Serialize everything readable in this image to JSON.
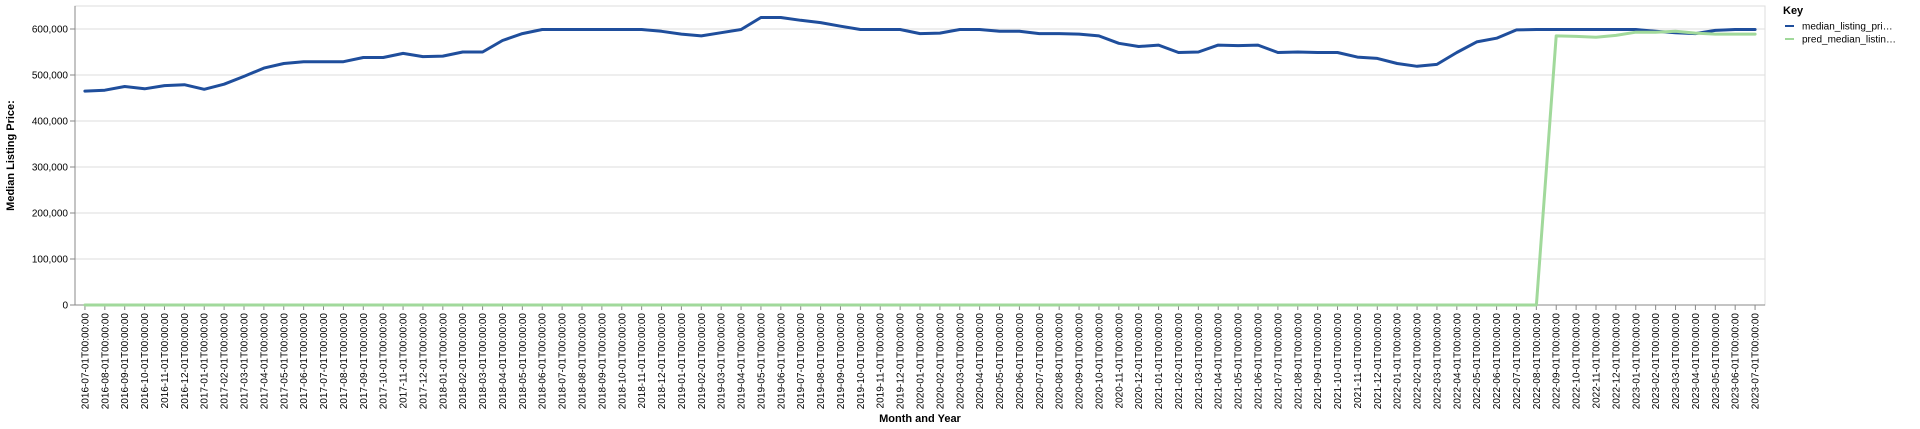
{
  "chart_data": {
    "type": "line",
    "xlabel": "Month and Year",
    "ylabel": "Median Listing Price:",
    "ylim": [
      0,
      650000
    ],
    "yticks": [
      0,
      100000,
      200000,
      300000,
      400000,
      500000,
      600000
    ],
    "ytick_labels": [
      "0",
      "100,000",
      "200,000",
      "300,000",
      "400,000",
      "500,000",
      "600,000"
    ],
    "grid": true,
    "legend": {
      "title": "Key",
      "placement": "top-right"
    },
    "x": [
      "2016-07-01T00:00:00",
      "2016-08-01T00:00:00",
      "2016-09-01T00:00:00",
      "2016-10-01T00:00:00",
      "2016-11-01T00:00:00",
      "2016-12-01T00:00:00",
      "2017-01-01T00:00:00",
      "2017-02-01T00:00:00",
      "2017-03-01T00:00:00",
      "2017-04-01T00:00:00",
      "2017-05-01T00:00:00",
      "2017-06-01T00:00:00",
      "2017-07-01T00:00:00",
      "2017-08-01T00:00:00",
      "2017-09-01T00:00:00",
      "2017-10-01T00:00:00",
      "2017-11-01T00:00:00",
      "2017-12-01T00:00:00",
      "2018-01-01T00:00:00",
      "2018-02-01T00:00:00",
      "2018-03-01T00:00:00",
      "2018-04-01T00:00:00",
      "2018-05-01T00:00:00",
      "2018-06-01T00:00:00",
      "2018-07-01T00:00:00",
      "2018-08-01T00:00:00",
      "2018-09-01T00:00:00",
      "2018-10-01T00:00:00",
      "2018-11-01T00:00:00",
      "2018-12-01T00:00:00",
      "2019-01-01T00:00:00",
      "2019-02-01T00:00:00",
      "2019-03-01T00:00:00",
      "2019-04-01T00:00:00",
      "2019-05-01T00:00:00",
      "2019-06-01T00:00:00",
      "2019-07-01T00:00:00",
      "2019-08-01T00:00:00",
      "2019-09-01T00:00:00",
      "2019-10-01T00:00:00",
      "2019-11-01T00:00:00",
      "2019-12-01T00:00:00",
      "2020-01-01T00:00:00",
      "2020-02-01T00:00:00",
      "2020-03-01T00:00:00",
      "2020-04-01T00:00:00",
      "2020-05-01T00:00:00",
      "2020-06-01T00:00:00",
      "2020-07-01T00:00:00",
      "2020-08-01T00:00:00",
      "2020-09-01T00:00:00",
      "2020-10-01T00:00:00",
      "2020-11-01T00:00:00",
      "2020-12-01T00:00:00",
      "2021-01-01T00:00:00",
      "2021-02-01T00:00:00",
      "2021-03-01T00:00:00",
      "2021-04-01T00:00:00",
      "2021-05-01T00:00:00",
      "2021-06-01T00:00:00",
      "2021-07-01T00:00:00",
      "2021-08-01T00:00:00",
      "2021-09-01T00:00:00",
      "2021-10-01T00:00:00",
      "2021-11-01T00:00:00",
      "2021-12-01T00:00:00",
      "2022-01-01T00:00:00",
      "2022-02-01T00:00:00",
      "2022-03-01T00:00:00",
      "2022-04-01T00:00:00",
      "2022-05-01T00:00:00",
      "2022-06-01T00:00:00",
      "2022-07-01T00:00:00",
      "2022-08-01T00:00:00",
      "2022-09-01T00:00:00",
      "2022-10-01T00:00:00",
      "2022-11-01T00:00:00",
      "2022-12-01T00:00:00",
      "2023-01-01T00:00:00",
      "2023-02-01T00:00:00",
      "2023-03-01T00:00:00",
      "2023-04-01T00:00:00",
      "2023-05-01T00:00:00",
      "2023-06-01T00:00:00",
      "2023-07-01T00:00:00"
    ],
    "series": [
      {
        "name": "median_listing_pri…",
        "color": "#1f4e9c",
        "values": [
          465000,
          467000,
          475000,
          470000,
          477000,
          479000,
          469000,
          480000,
          497000,
          515000,
          525000,
          529000,
          529000,
          529000,
          538000,
          538000,
          547000,
          540000,
          541000,
          550000,
          550000,
          575000,
          590000,
          599000,
          599000,
          599000,
          599000,
          599000,
          599000,
          595000,
          589000,
          585000,
          592000,
          599000,
          625000,
          625000,
          619000,
          614000,
          606000,
          599000,
          599000,
          599000,
          590000,
          591000,
          599000,
          599000,
          595000,
          595000,
          590000,
          590000,
          589000,
          585000,
          569000,
          562000,
          565000,
          549000,
          550000,
          565000,
          564000,
          565000,
          549000,
          550000,
          549000,
          549000,
          539000,
          536000,
          525000,
          519000,
          523000,
          549000,
          572000,
          580000,
          598000,
          599000,
          599000,
          599000,
          599000,
          599000,
          599000,
          595000,
          592000,
          590000,
          597000,
          599000,
          599000
        ]
      },
      {
        "name": "pred_median_listin…",
        "color": "#a1d99b",
        "values": [
          0,
          0,
          0,
          0,
          0,
          0,
          0,
          0,
          0,
          0,
          0,
          0,
          0,
          0,
          0,
          0,
          0,
          0,
          0,
          0,
          0,
          0,
          0,
          0,
          0,
          0,
          0,
          0,
          0,
          0,
          0,
          0,
          0,
          0,
          0,
          0,
          0,
          0,
          0,
          0,
          0,
          0,
          0,
          0,
          0,
          0,
          0,
          0,
          0,
          0,
          0,
          0,
          0,
          0,
          0,
          0,
          0,
          0,
          0,
          0,
          0,
          0,
          0,
          0,
          0,
          0,
          0,
          0,
          0,
          0,
          0,
          0,
          0,
          0,
          585000,
          584000,
          582000,
          586000,
          593000,
          593000,
          595000,
          591000,
          589000,
          589000,
          589000
        ]
      }
    ]
  }
}
